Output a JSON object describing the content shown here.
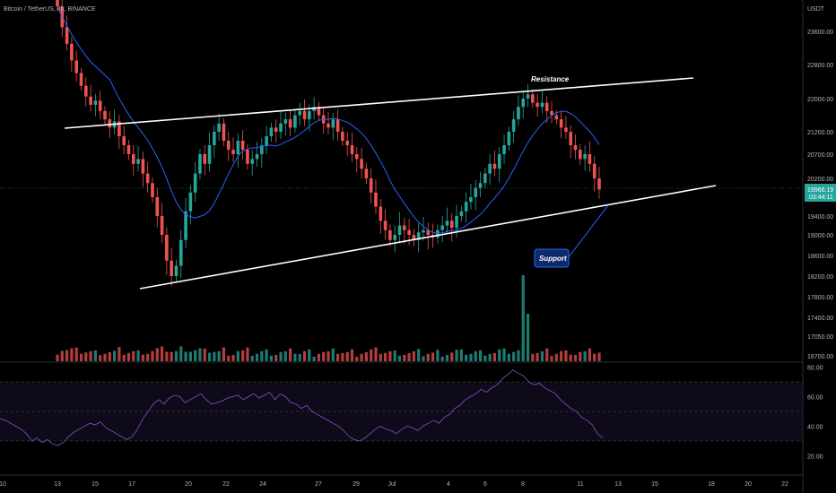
{
  "header": {
    "title": "Bitcoin / TetherUS, 4h, BINANCE",
    "currency": "USDT"
  },
  "price_tag": {
    "price": "19966.19",
    "countdown": "03:44:11"
  },
  "annotations": {
    "resistance": "Resistance",
    "support": "Support"
  },
  "colors": {
    "up": "#26a69a",
    "down": "#ef5350",
    "ma": "#2962ff",
    "rsi": "#7e57c2",
    "trendline": "#ffffff",
    "support_box": "#1e3a8a",
    "bg": "#000000"
  },
  "chart_data": [
    {
      "type": "candlestick",
      "title": "",
      "price_axis_ticks": [
        23600,
        22800,
        22000,
        21200,
        20700,
        20200,
        19400,
        19000,
        18600,
        18200,
        17800,
        17400,
        17050,
        16700
      ],
      "price_axis_labels": [
        "23600.00",
        "22800.00",
        "22000.00",
        "21200.00",
        "20700.00",
        "20200.00",
        "19400.00",
        "19000.00",
        "18600.00",
        "18200.00",
        "17800.00",
        "17400.00",
        "17050.00",
        "16700.00"
      ],
      "close_series": [
        24200,
        23700,
        23300,
        22900,
        22600,
        22300,
        22050,
        21850,
        21950,
        21700,
        21500,
        21300,
        21450,
        21100,
        20900,
        20700,
        20500,
        20600,
        20300,
        20100,
        19800,
        19400,
        19000,
        18500,
        18200,
        18400,
        18900,
        19500,
        19900,
        20300,
        20700,
        20500,
        20900,
        21200,
        21400,
        21000,
        20800,
        20700,
        21000,
        20800,
        20500,
        20600,
        20700,
        20900,
        21100,
        21300,
        21200,
        21400,
        21500,
        21300,
        21600,
        21700,
        21500,
        21700,
        21800,
        21600,
        21400,
        21300,
        21500,
        21200,
        21000,
        20900,
        20700,
        20600,
        20400,
        20200,
        19900,
        19600,
        19300,
        19100,
        18900,
        19000,
        19200,
        19100,
        19000,
        18900,
        19050,
        19100,
        19000,
        18950,
        19100,
        19200,
        19300,
        19150,
        19400,
        19500,
        19700,
        19800,
        20000,
        20100,
        20300,
        20500,
        20400,
        20700,
        20900,
        21200,
        21500,
        21800,
        22000,
        22100,
        21900,
        21800,
        21900,
        21700,
        21600,
        21500,
        21300,
        21200,
        20900,
        20800,
        20600,
        20700,
        20500,
        20200,
        19966.19
      ],
      "series": [
        {
          "name": "",
          "values": []
        }
      ],
      "volume_peak_label": ""
    },
    {
      "type": "line",
      "title": "",
      "y_ticks": [
        80,
        60,
        40,
        20
      ],
      "y_labels": [
        "80.00",
        "60.00",
        "40.00",
        "20.00"
      ],
      "band": [
        30,
        70
      ],
      "values": [
        45,
        44,
        42,
        40,
        38,
        35,
        30,
        32,
        29,
        31,
        28,
        27,
        29,
        33,
        36,
        38,
        40,
        42,
        41,
        43,
        39,
        37,
        35,
        33,
        31,
        33,
        38,
        45,
        50,
        55,
        58,
        55,
        59,
        61,
        60,
        56,
        58,
        60,
        62,
        58,
        55,
        56,
        57,
        59,
        60,
        61,
        58,
        60,
        62,
        59,
        61,
        63,
        58,
        62,
        60,
        56,
        55,
        52,
        54,
        50,
        48,
        46,
        44,
        42,
        40,
        37,
        33,
        31,
        30,
        32,
        35,
        38,
        40,
        38,
        37,
        35,
        38,
        40,
        39,
        37,
        40,
        42,
        44,
        42,
        46,
        48,
        52,
        54,
        58,
        60,
        62,
        65,
        63,
        66,
        68,
        72,
        75,
        78,
        76,
        74,
        70,
        68,
        69,
        66,
        64,
        62,
        58,
        55,
        52,
        50,
        46,
        44,
        41,
        35,
        32
      ]
    }
  ],
  "x_axis": {
    "labels": [
      "10",
      "13",
      "15",
      "17",
      "20",
      "22",
      "24",
      "27",
      "29",
      "Jul",
      "4",
      "6",
      "8",
      "11",
      "13",
      "15",
      "18",
      "20",
      "22"
    ]
  }
}
